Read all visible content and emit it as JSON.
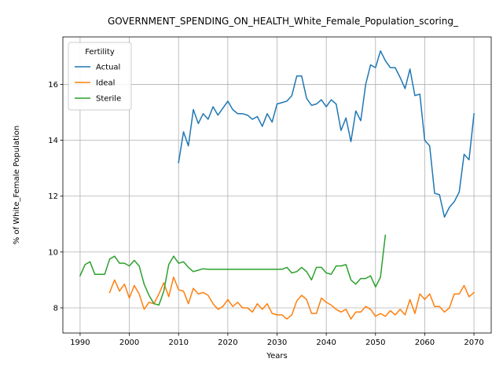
{
  "chart_data": {
    "type": "line",
    "title": "GOVERNMENT_SPENDING_ON_HEALTH_White_Female_Population_scoring_",
    "xlabel": "Years",
    "ylabel": "% of White_Female Population",
    "xlim": [
      1986.5,
      2073.5
    ],
    "ylim": [
      7.1,
      17.7
    ],
    "xticks": [
      1990,
      2000,
      2010,
      2020,
      2030,
      2040,
      2050,
      2060,
      2070
    ],
    "yticks": [
      8,
      10,
      12,
      14,
      16
    ],
    "grid": true,
    "legend": {
      "title": "Fertility",
      "position": "upper left"
    },
    "series": [
      {
        "name": "Actual",
        "color": "#1f77b4",
        "x": [
          2010,
          2011,
          2012,
          2013,
          2014,
          2015,
          2016,
          2017,
          2018,
          2019,
          2020,
          2021,
          2022,
          2023,
          2024,
          2025,
          2026,
          2027,
          2028,
          2029,
          2030,
          2031,
          2032,
          2033,
          2034,
          2035,
          2036,
          2037,
          2038,
          2039,
          2040,
          2041,
          2042,
          2043,
          2044,
          2045,
          2046,
          2047,
          2048,
          2049,
          2050,
          2051,
          2052,
          2053,
          2054,
          2055,
          2056,
          2057,
          2058,
          2059,
          2060,
          2061,
          2062,
          2063,
          2064,
          2065,
          2066,
          2067,
          2068,
          2069,
          2070
        ],
        "y": [
          13.2,
          14.3,
          13.8,
          15.1,
          14.6,
          14.95,
          14.75,
          15.2,
          14.9,
          15.15,
          15.4,
          15.1,
          14.95,
          14.95,
          14.9,
          14.75,
          14.85,
          14.5,
          14.95,
          14.65,
          15.3,
          15.35,
          15.4,
          15.6,
          16.3,
          16.3,
          15.5,
          15.25,
          15.3,
          15.45,
          15.2,
          15.45,
          15.3,
          14.35,
          14.8,
          13.95,
          15.05,
          14.7,
          16.0,
          16.7,
          16.6,
          17.2,
          16.85,
          16.6,
          16.6,
          16.25,
          15.85,
          16.55,
          15.6,
          15.65,
          14.0,
          13.8,
          12.1,
          12.05,
          11.25,
          11.6,
          11.8,
          12.15,
          13.5,
          13.3,
          14.95
        ]
      },
      {
        "name": "Ideal",
        "color": "#ff7f0e",
        "x": [
          1996,
          1997,
          1998,
          1999,
          2000,
          2001,
          2002,
          2003,
          2004,
          2005,
          2006,
          2007,
          2008,
          2009,
          2010,
          2011,
          2012,
          2013,
          2014,
          2015,
          2016,
          2017,
          2018,
          2019,
          2020,
          2021,
          2022,
          2023,
          2024,
          2025,
          2026,
          2027,
          2028,
          2029,
          2030,
          2031,
          2032,
          2033,
          2034,
          2035,
          2036,
          2037,
          2038,
          2039,
          2040,
          2041,
          2042,
          2043,
          2044,
          2045,
          2046,
          2047,
          2048,
          2049,
          2050,
          2051,
          2052,
          2053,
          2054,
          2055,
          2056,
          2057,
          2058,
          2059,
          2060,
          2061,
          2062,
          2063,
          2064,
          2065,
          2066,
          2067,
          2068,
          2069,
          2070
        ],
        "y": [
          8.55,
          9.0,
          8.6,
          8.85,
          8.35,
          8.8,
          8.5,
          7.95,
          8.2,
          8.15,
          8.5,
          8.9,
          8.4,
          9.1,
          8.65,
          8.6,
          8.15,
          8.7,
          8.5,
          8.55,
          8.45,
          8.15,
          7.95,
          8.05,
          8.3,
          8.05,
          8.2,
          8.0,
          8.0,
          7.85,
          8.15,
          7.95,
          8.15,
          7.8,
          7.75,
          7.75,
          7.6,
          7.75,
          8.25,
          8.45,
          8.3,
          7.8,
          7.8,
          8.35,
          8.2,
          8.1,
          7.95,
          7.85,
          7.95,
          7.6,
          7.85,
          7.85,
          8.05,
          7.95,
          7.7,
          7.8,
          7.7,
          7.9,
          7.75,
          7.95,
          7.75,
          8.3,
          7.8,
          8.5,
          8.3,
          8.5,
          8.05,
          8.05,
          7.85,
          8.0,
          8.5,
          8.5,
          8.8,
          8.4,
          8.55
        ]
      },
      {
        "name": "Sterile",
        "color": "#2ca02c",
        "x": [
          1990,
          1991,
          1992,
          1993,
          1994,
          1995,
          1996,
          1997,
          1998,
          1999,
          2000,
          2001,
          2002,
          2003,
          2004,
          2005,
          2006,
          2007,
          2008,
          2009,
          2010,
          2011,
          2012,
          2013,
          2014,
          2015,
          2016,
          2017,
          2018,
          2019,
          2020,
          2021,
          2022,
          2023,
          2024,
          2025,
          2026,
          2027,
          2028,
          2029,
          2030,
          2031,
          2032,
          2033,
          2034,
          2035,
          2036,
          2037,
          2038,
          2039,
          2040,
          2041,
          2042,
          2043,
          2044,
          2045,
          2046,
          2047,
          2048,
          2049,
          2050,
          2051,
          2052
        ],
        "y": [
          9.15,
          9.55,
          9.65,
          9.2,
          9.2,
          9.2,
          9.75,
          9.85,
          9.6,
          9.6,
          9.5,
          9.7,
          9.5,
          8.85,
          8.45,
          8.15,
          8.1,
          8.6,
          9.55,
          9.85,
          9.6,
          9.65,
          9.45,
          9.3,
          9.35,
          9.4,
          9.38,
          9.38,
          9.38,
          9.38,
          9.38,
          9.38,
          9.38,
          9.38,
          9.38,
          9.38,
          9.38,
          9.38,
          9.38,
          9.38,
          9.38,
          9.38,
          9.45,
          9.25,
          9.3,
          9.45,
          9.3,
          9.0,
          9.45,
          9.45,
          9.25,
          9.2,
          9.5,
          9.5,
          9.55,
          9.0,
          8.85,
          9.05,
          9.05,
          9.15,
          8.75,
          9.1,
          10.6
        ]
      }
    ]
  }
}
